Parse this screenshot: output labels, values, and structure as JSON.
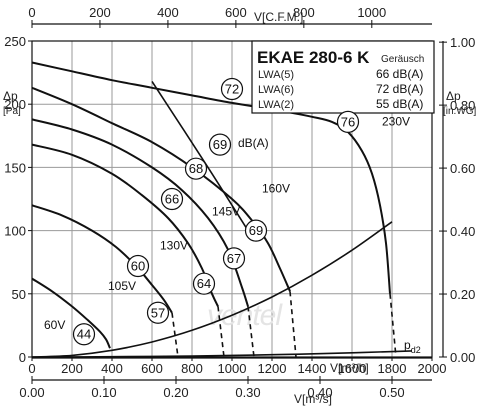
{
  "chart_data": {
    "type": "line",
    "title": "EKAE 280-6 K",
    "legend": {
      "header": "Geräusch",
      "rows": [
        {
          "label": "LWA(5)",
          "value": "66 dB(A)"
        },
        {
          "label": "LWA(6)",
          "value": "72 dB(A)"
        },
        {
          "label": "LWA(2)",
          "value": "55 dB(A)"
        }
      ]
    },
    "x_bottom": {
      "label": "V[m³/h]",
      "range": [
        0,
        2000
      ],
      "ticks": [
        0,
        200,
        400,
        600,
        800,
        1000,
        1200,
        1400,
        1600,
        1800,
        2000
      ]
    },
    "x_bottom2": {
      "label": "V[m³/s]",
      "ticks": [
        "0.00",
        "0.10",
        "0.20",
        "0.30",
        "0.40",
        "0.50"
      ],
      "tick_values": [
        0,
        0.1,
        0.2,
        0.3,
        0.4,
        0.5
      ]
    },
    "x_top": {
      "label": "V[C.F.M.]",
      "ticks": [
        0,
        200,
        400,
        600,
        800,
        1000
      ]
    },
    "y_left": {
      "label_line1": "Δp",
      "label_line2": "[Pa]",
      "range": [
        0,
        250
      ],
      "ticks": [
        0,
        50,
        100,
        150,
        200,
        250
      ]
    },
    "y_right": {
      "label_line1": "Δp",
      "label_line2": "[in.WG]",
      "ticks": [
        "0.00",
        "0.20",
        "0.40",
        "0.60",
        "0.80",
        "1.00"
      ],
      "tick_values": [
        0,
        0.2,
        0.4,
        0.6,
        0.8,
        1.0
      ]
    },
    "grid": true,
    "series": [
      {
        "name": "230V",
        "x": [
          0,
          200,
          400,
          600,
          800,
          1000,
          1200,
          1400,
          1500,
          1580,
          1650,
          1700,
          1740,
          1770,
          1790
        ],
        "y": [
          233,
          226,
          219,
          213,
          207,
          201,
          196,
          190,
          186,
          178,
          163,
          145,
          120,
          90,
          50
        ]
      },
      {
        "name": "160V",
        "x": [
          0,
          200,
          400,
          600,
          800,
          1000,
          1100,
          1180,
          1240,
          1290
        ],
        "y": [
          213,
          200,
          185,
          170,
          150,
          125,
          108,
          90,
          70,
          52
        ]
      },
      {
        "name": "145V",
        "x": [
          0,
          200,
          400,
          600,
          750,
          880,
          980,
          1050,
          1080
        ],
        "y": [
          188,
          180,
          168,
          150,
          132,
          110,
          85,
          55,
          40
        ]
      },
      {
        "name": "130V",
        "x": [
          0,
          200,
          400,
          550,
          680,
          780,
          850,
          900,
          930
        ],
        "y": [
          168,
          160,
          145,
          128,
          110,
          90,
          70,
          50,
          40
        ]
      },
      {
        "name": "105V",
        "x": [
          0,
          150,
          300,
          420,
          520,
          600,
          660,
          700
        ],
        "y": [
          120,
          112,
          100,
          87,
          72,
          57,
          45,
          35
        ]
      },
      {
        "name": "60V",
        "x": [
          0,
          100,
          200,
          280,
          340,
          370,
          390
        ],
        "y": [
          62,
          52,
          40,
          29,
          20,
          14,
          7
        ]
      }
    ],
    "system_curves": [
      {
        "name": "upper",
        "x": [
          0,
          200,
          400,
          600,
          800,
          1000,
          1200,
          1400,
          1600,
          1800
        ],
        "y": [
          0,
          1.3,
          5.3,
          11.9,
          21.1,
          33,
          47.5,
          64.7,
          84.5,
          107
        ]
      },
      {
        "name": "pd2",
        "label": "p",
        "label_sub": "d2",
        "x": [
          0,
          400,
          800,
          1200,
          1600,
          1900
        ],
        "y": [
          0,
          0.2,
          0.8,
          1.8,
          3.3,
          4.8
        ]
      }
    ],
    "dashed_tails": [
      {
        "x": [
          1790,
          1820
        ],
        "y": [
          50,
          0
        ]
      },
      {
        "x": [
          1290,
          1320
        ],
        "y": [
          52,
          0
        ]
      },
      {
        "x": [
          1080,
          1110
        ],
        "y": [
          40,
          0
        ]
      },
      {
        "x": [
          930,
          960
        ],
        "y": [
          40,
          0
        ]
      },
      {
        "x": [
          700,
          730
        ],
        "y": [
          35,
          0
        ]
      }
    ],
    "iso_noise": [
      {
        "label": "69",
        "x": [
          600,
          880,
          1080
        ],
        "y": [
          218,
          150,
          100
        ]
      }
    ],
    "bubbles": [
      {
        "value": "72",
        "x": 1000,
        "y": 212
      },
      {
        "value": "76",
        "x": 1580,
        "y": 186
      },
      {
        "value": "69",
        "x": 940,
        "y": 168
      },
      {
        "value": "68",
        "x": 820,
        "y": 149
      },
      {
        "value": "66",
        "x": 700,
        "y": 125
      },
      {
        "value": "60",
        "x": 530,
        "y": 72
      },
      {
        "value": "57",
        "x": 630,
        "y": 35
      },
      {
        "value": "44",
        "x": 260,
        "y": 18
      },
      {
        "value": "69",
        "x": 1120,
        "y": 100
      },
      {
        "value": "67",
        "x": 1010,
        "y": 78
      },
      {
        "value": "64",
        "x": 860,
        "y": 58
      }
    ],
    "annotations": [
      {
        "text": "dB(A)",
        "x": 1030,
        "y": 166
      },
      {
        "text": "230V",
        "x": 1750,
        "y": 183
      },
      {
        "text": "160V",
        "x": 1150,
        "y": 130
      },
      {
        "text": "145V",
        "x": 900,
        "y": 112
      },
      {
        "text": "130V",
        "x": 640,
        "y": 85
      },
      {
        "text": "105V",
        "x": 380,
        "y": 53
      },
      {
        "text": "60V",
        "x": 60,
        "y": 22
      }
    ],
    "watermark": "ventel"
  }
}
